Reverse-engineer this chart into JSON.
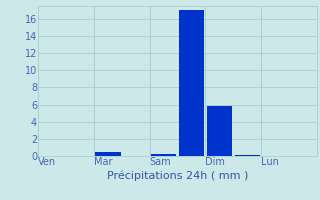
{
  "background_color": "#cce8e8",
  "bar_color": "#0033cc",
  "grid_color": "#aacfcf",
  "tick_label_color": "#4466bb",
  "axis_label_color": "#3355aa",
  "ylim": [
    0,
    17.5
  ],
  "yticks": [
    0,
    2,
    4,
    6,
    8,
    10,
    12,
    14,
    16
  ],
  "ytick_labels": [
    "0",
    "2",
    "4",
    "6",
    "8",
    "10",
    "12",
    "14",
    "16"
  ],
  "num_days": 5,
  "day_labels": [
    "Ven",
    "Mar",
    "Sam",
    "Dim",
    "Lun"
  ],
  "num_slots": 10,
  "bar_values": [
    0,
    0,
    0.5,
    0,
    0.2,
    17.0,
    5.8,
    0.15,
    0,
    0
  ],
  "bar_width": 0.9,
  "xlabel": "Précipitations 24h ( mm )",
  "xlabel_fontsize": 8,
  "tick_fontsize": 7,
  "figwidth": 3.2,
  "figheight": 2.0,
  "dpi": 100
}
